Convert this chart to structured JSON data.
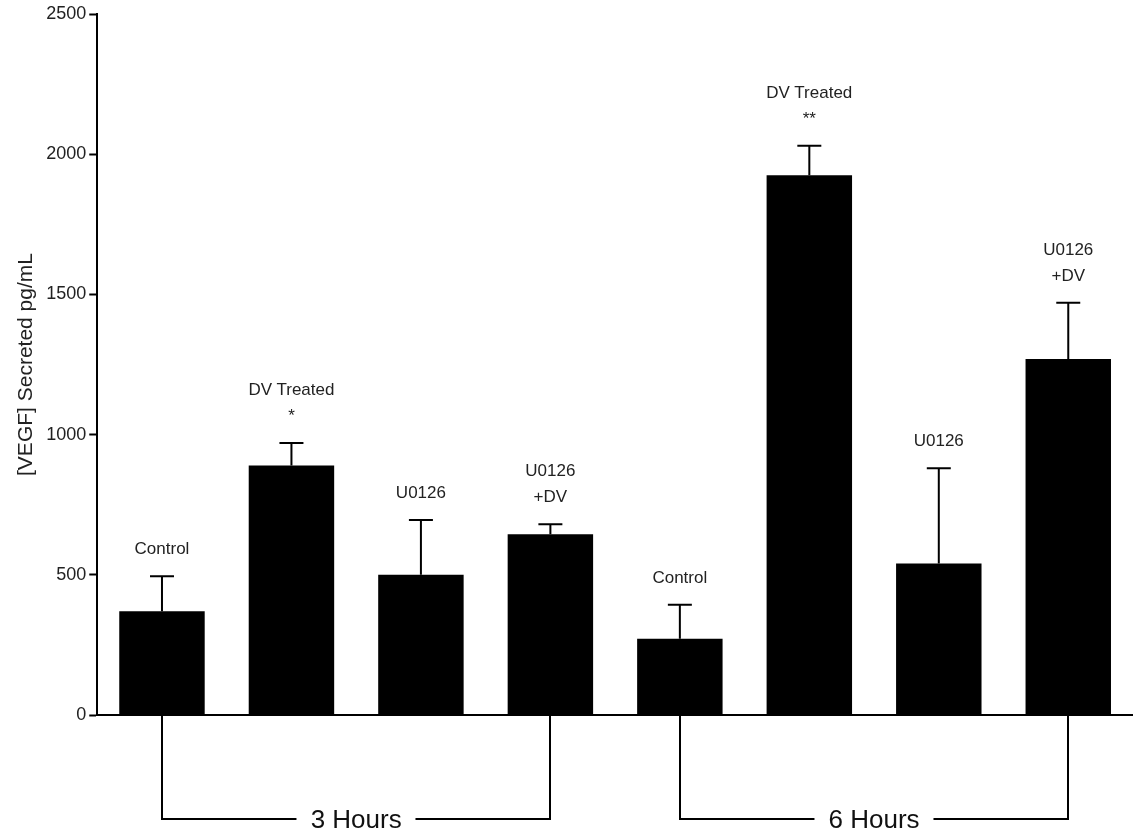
{
  "chart_data": {
    "type": "bar",
    "ylabel": "[VEGF] Secreted pg/mL",
    "categories": [
      "Control",
      "DV Treated\n*",
      "U0126",
      "U0126\n+DV",
      "Control",
      "DV Treated\n**",
      "U0126",
      "U0126\n+DV"
    ],
    "values": [
      370,
      890,
      500,
      645,
      272,
      1925,
      540,
      1270
    ],
    "errors": [
      [
        370,
        495
      ],
      [
        890,
        970
      ],
      [
        500,
        695
      ],
      [
        645,
        680
      ],
      [
        272,
        393
      ],
      [
        1925,
        2030
      ],
      [
        540,
        880
      ],
      [
        1270,
        1470
      ]
    ],
    "color": "#000000",
    "ylim": [
      0,
      2500
    ],
    "yticks": [
      0,
      500,
      1000,
      1500,
      2000,
      2500
    ],
    "grid": false,
    "legend": false,
    "annotations": [
      "3 Hours",
      "6 Hours"
    ]
  }
}
